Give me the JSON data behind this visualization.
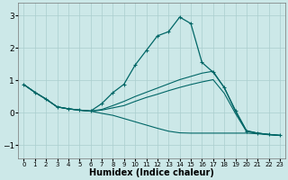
{
  "xlabel": "Humidex (Indice chaleur)",
  "bg_color": "#cce8e8",
  "grid_color": "#aacece",
  "line_color": "#006666",
  "xlim": [
    -0.5,
    23.5
  ],
  "ylim": [
    -1.4,
    3.4
  ],
  "yticks": [
    -1,
    0,
    1,
    2,
    3
  ],
  "xticks": [
    0,
    1,
    2,
    3,
    4,
    5,
    6,
    7,
    8,
    9,
    10,
    11,
    12,
    13,
    14,
    15,
    16,
    17,
    18,
    19,
    20,
    21,
    22,
    23
  ],
  "line1_x": [
    0,
    1,
    2,
    3,
    4,
    5,
    6,
    7,
    8,
    9,
    10,
    11,
    12,
    13,
    14,
    15,
    16,
    17,
    18,
    19,
    20,
    21,
    22,
    23
  ],
  "line1_y": [
    0.87,
    0.63,
    0.42,
    0.18,
    0.12,
    0.08,
    0.05,
    0.28,
    0.62,
    0.88,
    1.47,
    1.92,
    2.37,
    2.5,
    2.95,
    2.75,
    1.55,
    1.25,
    0.78,
    0.05,
    -0.57,
    -0.63,
    -0.67,
    -0.7
  ],
  "line2_x": [
    0,
    1,
    2,
    3,
    4,
    5,
    6,
    7,
    8,
    9,
    10,
    11,
    12,
    13,
    14,
    15,
    16,
    17,
    18,
    19,
    20,
    21,
    22,
    23
  ],
  "line2_y": [
    0.87,
    0.63,
    0.42,
    0.18,
    0.12,
    0.08,
    0.05,
    0.1,
    0.22,
    0.35,
    0.5,
    0.63,
    0.76,
    0.89,
    1.02,
    1.12,
    1.22,
    1.28,
    0.77,
    0.08,
    -0.55,
    -0.63,
    -0.67,
    -0.7
  ],
  "line3_x": [
    0,
    1,
    2,
    3,
    4,
    5,
    6,
    7,
    8,
    9,
    10,
    11,
    12,
    13,
    14,
    15,
    16,
    17,
    18,
    19,
    20,
    21,
    22,
    23
  ],
  "line3_y": [
    0.87,
    0.63,
    0.42,
    0.18,
    0.12,
    0.08,
    0.05,
    0.08,
    0.15,
    0.22,
    0.35,
    0.47,
    0.57,
    0.68,
    0.78,
    0.87,
    0.95,
    1.02,
    0.6,
    -0.02,
    -0.58,
    -0.63,
    -0.67,
    -0.7
  ],
  "line4_x": [
    0,
    1,
    2,
    3,
    4,
    5,
    6,
    7,
    8,
    9,
    10,
    11,
    12,
    13,
    14,
    15,
    16,
    17,
    18,
    19,
    20,
    21,
    22,
    23
  ],
  "line4_y": [
    0.87,
    0.63,
    0.42,
    0.18,
    0.12,
    0.08,
    0.05,
    -0.02,
    -0.08,
    -0.18,
    -0.28,
    -0.38,
    -0.48,
    -0.57,
    -0.62,
    -0.63,
    -0.63,
    -0.63,
    -0.63,
    -0.63,
    -0.63,
    -0.65,
    -0.68,
    -0.7
  ]
}
